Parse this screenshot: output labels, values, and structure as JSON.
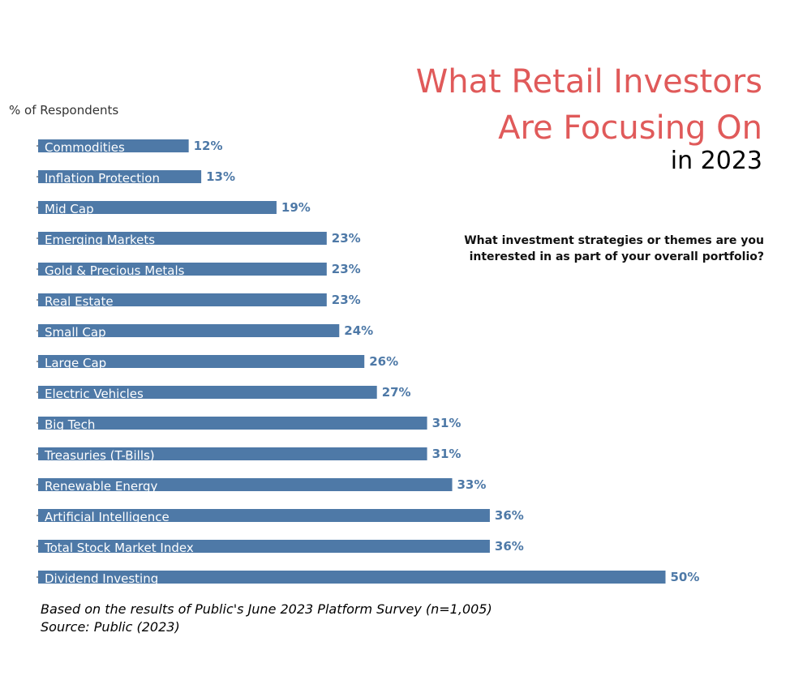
{
  "chart_data": {
    "type": "bar",
    "orientation": "horizontal",
    "title": [
      "What Retail Investors",
      "Are Focusing On"
    ],
    "subtitle": "in 2023",
    "question": [
      "What investment strategies or themes are you",
      "interested in as part of your overall portfolio?"
    ],
    "ylabel": "% of Respondents",
    "xlim": [
      0,
      55
    ],
    "grid": false,
    "bar_color": "#4e79a7",
    "title_color": "#e05a5a",
    "categories": [
      "Commodities",
      "Inflation Protection",
      "Mid Cap",
      "Emerging Markets",
      "Gold & Precious Metals",
      "Real Estate",
      "Small Cap",
      "Large Cap",
      "Electric Vehicles",
      "Big Tech",
      "Treasuries (T-Bills)",
      "Renewable Energy",
      "Artificial Intelligence",
      "Total Stock Market Index",
      "Dividend Investing"
    ],
    "values": [
      12,
      13,
      19,
      23,
      23,
      23,
      24,
      26,
      27,
      31,
      31,
      33,
      36,
      36,
      50
    ],
    "value_labels": [
      "12%",
      "13%",
      "19%",
      "23%",
      "23%",
      "23%",
      "24%",
      "26%",
      "27%",
      "31%",
      "31%",
      "33%",
      "36%",
      "36%",
      "50%"
    ]
  },
  "footnotes": [
    "Based on the results of Public's June 2023 Platform Survey (n=1,005)",
    "Source: Public (2023)"
  ]
}
